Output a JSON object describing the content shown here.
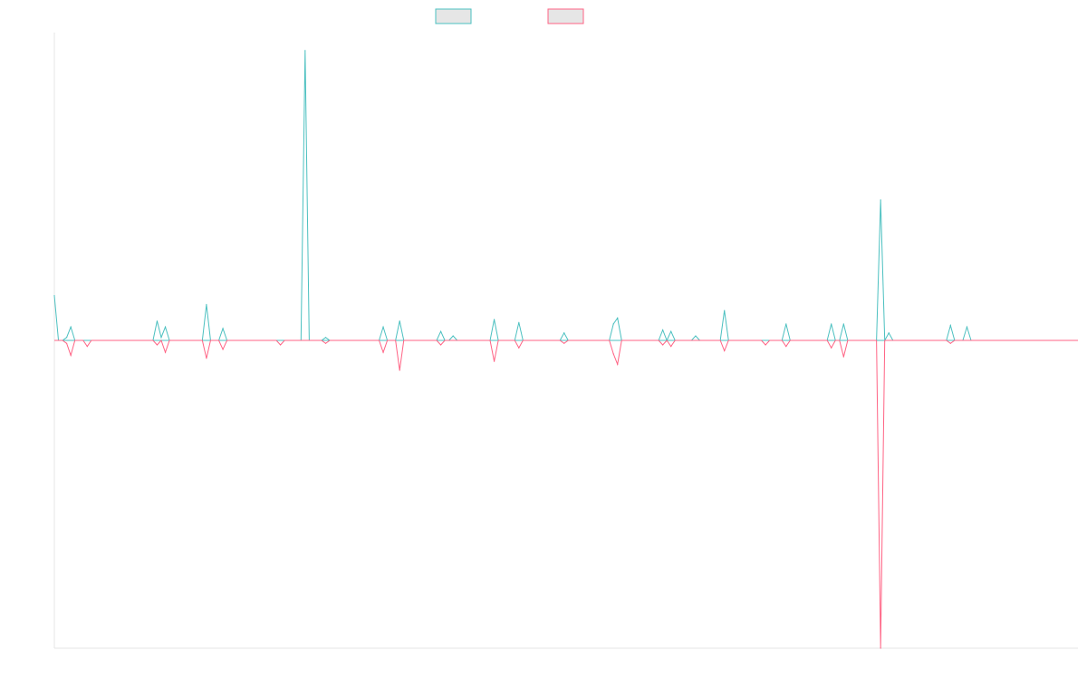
{
  "chart_data": {
    "type": "line",
    "title": "",
    "xlabel": "",
    "ylabel": "",
    "x_count": 250,
    "ylim": [
      -1.03,
      1.03
    ],
    "grid": false,
    "legend_position": "top-center",
    "colors": {
      "series_a": "#4bc0c0",
      "series_b": "#ff6384",
      "legend_fill": "#e6e6e6",
      "axis": "#e6e6e6"
    },
    "series": [
      {
        "name": "",
        "color": "#4bc0c0",
        "points": [
          [
            0,
            0.15
          ],
          [
            1,
            0.0
          ],
          [
            2,
            0.0
          ],
          [
            3,
            0.01
          ],
          [
            4,
            0.045
          ],
          [
            5,
            0.0
          ],
          [
            25,
            0.065
          ],
          [
            26,
            0.01
          ],
          [
            27,
            0.045
          ],
          [
            28,
            0.0
          ],
          [
            37,
            0.12
          ],
          [
            38,
            0.0
          ],
          [
            41,
            0.04
          ],
          [
            42,
            0.0
          ],
          [
            61,
            0.97
          ],
          [
            62,
            0.0
          ],
          [
            66,
            0.01
          ],
          [
            80,
            0.045
          ],
          [
            84,
            0.065
          ],
          [
            85,
            0.0
          ],
          [
            94,
            0.03
          ],
          [
            97,
            0.015
          ],
          [
            107,
            0.07
          ],
          [
            113,
            0.06
          ],
          [
            114,
            0.0
          ],
          [
            124,
            0.025
          ],
          [
            136,
            0.055
          ],
          [
            137,
            0.075
          ],
          [
            138,
            0.0
          ],
          [
            148,
            0.035
          ],
          [
            150,
            0.03
          ],
          [
            156,
            0.015
          ],
          [
            163,
            0.1
          ],
          [
            164,
            0.0
          ],
          [
            178,
            0.055
          ],
          [
            179,
            0.0
          ],
          [
            189,
            0.055
          ],
          [
            192,
            0.055
          ],
          [
            193,
            0.0
          ],
          [
            201,
            0.47
          ],
          [
            202,
            0.0
          ],
          [
            203,
            0.025
          ],
          [
            218,
            0.05
          ],
          [
            222,
            0.045
          ],
          [
            223,
            0.0
          ]
        ]
      },
      {
        "name": "",
        "color": "#ff6384",
        "points": [
          [
            0,
            0.0
          ],
          [
            3,
            -0.01
          ],
          [
            4,
            -0.05
          ],
          [
            5,
            0.0
          ],
          [
            8,
            -0.02
          ],
          [
            25,
            -0.015
          ],
          [
            27,
            -0.04
          ],
          [
            28,
            0.0
          ],
          [
            37,
            -0.06
          ],
          [
            38,
            0.0
          ],
          [
            41,
            -0.03
          ],
          [
            42,
            0.0
          ],
          [
            55,
            -0.015
          ],
          [
            66,
            -0.01
          ],
          [
            80,
            -0.04
          ],
          [
            84,
            -0.1
          ],
          [
            85,
            0.0
          ],
          [
            94,
            -0.015
          ],
          [
            107,
            -0.07
          ],
          [
            113,
            -0.025
          ],
          [
            114,
            0.0
          ],
          [
            124,
            -0.01
          ],
          [
            136,
            -0.045
          ],
          [
            137,
            -0.08
          ],
          [
            138,
            0.0
          ],
          [
            148,
            -0.015
          ],
          [
            150,
            -0.02
          ],
          [
            163,
            -0.035
          ],
          [
            164,
            0.0
          ],
          [
            173,
            -0.015
          ],
          [
            178,
            -0.02
          ],
          [
            179,
            0.0
          ],
          [
            189,
            -0.025
          ],
          [
            192,
            -0.055
          ],
          [
            193,
            0.0
          ],
          [
            201,
            -1.03
          ],
          [
            202,
            0.0
          ],
          [
            218,
            -0.01
          ]
        ]
      }
    ]
  }
}
